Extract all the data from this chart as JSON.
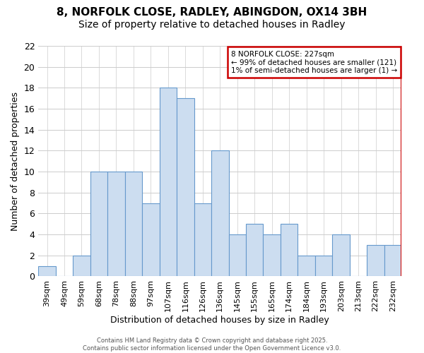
{
  "title1": "8, NORFOLK CLOSE, RADLEY, ABINGDON, OX14 3BH",
  "title2": "Size of property relative to detached houses in Radley",
  "xlabel": "Distribution of detached houses by size in Radley",
  "ylabel": "Number of detached properties",
  "categories": [
    "39sqm",
    "49sqm",
    "59sqm",
    "68sqm",
    "78sqm",
    "88sqm",
    "97sqm",
    "107sqm",
    "116sqm",
    "126sqm",
    "136sqm",
    "145sqm",
    "155sqm",
    "165sqm",
    "174sqm",
    "184sqm",
    "193sqm",
    "203sqm",
    "213sqm",
    "222sqm",
    "232sqm"
  ],
  "values": [
    1,
    0,
    2,
    10,
    10,
    10,
    7,
    18,
    17,
    7,
    12,
    4,
    5,
    4,
    5,
    2,
    2,
    4,
    0,
    3,
    3
  ],
  "bar_color": "#ccddf0",
  "bar_edge_color": "#6699cc",
  "vline_color": "#cc0000",
  "annotation_title": "8 NORFOLK CLOSE: 227sqm",
  "annotation_line1": "← 99% of detached houses are smaller (121)",
  "annotation_line2": "1% of semi-detached houses are larger (1) →",
  "annotation_box_color": "#ffffff",
  "annotation_box_edge": "#cc0000",
  "ylim": [
    0,
    22
  ],
  "yticks": [
    0,
    2,
    4,
    6,
    8,
    10,
    12,
    14,
    16,
    18,
    20,
    22
  ],
  "footer1": "Contains HM Land Registry data © Crown copyright and database right 2025.",
  "footer2": "Contains public sector information licensed under the Open Government Licence v3.0.",
  "background_color": "#ffffff",
  "grid_color": "#cccccc",
  "title1_fontsize": 11,
  "title2_fontsize": 10
}
